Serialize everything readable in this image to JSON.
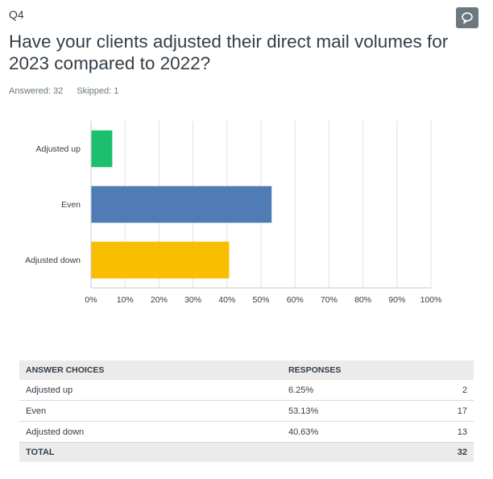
{
  "question": {
    "number": "Q4",
    "title": "Have your clients adjusted their direct mail volumes for 2023 compared to 2022?",
    "answered": "Answered: 32",
    "skipped": "Skipped: 1",
    "comment_icon": "speech-bubble-icon"
  },
  "chart_data": {
    "type": "bar",
    "orientation": "horizontal",
    "categories": [
      "Adjusted up",
      "Even",
      "Adjusted down"
    ],
    "values": [
      6.25,
      53.13,
      40.63
    ],
    "colors": [
      "#1bbf6e",
      "#507cb6",
      "#f9be00"
    ],
    "xlim": [
      0,
      100
    ],
    "ticks": [
      "0%",
      "10%",
      "20%",
      "30%",
      "40%",
      "50%",
      "60%",
      "70%",
      "80%",
      "90%",
      "100%"
    ],
    "grid": true
  },
  "table": {
    "headers": [
      "ANSWER CHOICES",
      "RESPONSES"
    ],
    "rows": [
      {
        "choice": "Adjusted up",
        "percent": "6.25%",
        "count": "2"
      },
      {
        "choice": "Even",
        "percent": "53.13%",
        "count": "17"
      },
      {
        "choice": "Adjusted down",
        "percent": "40.63%",
        "count": "13"
      }
    ],
    "total_label": "TOTAL",
    "total_count": "32"
  }
}
